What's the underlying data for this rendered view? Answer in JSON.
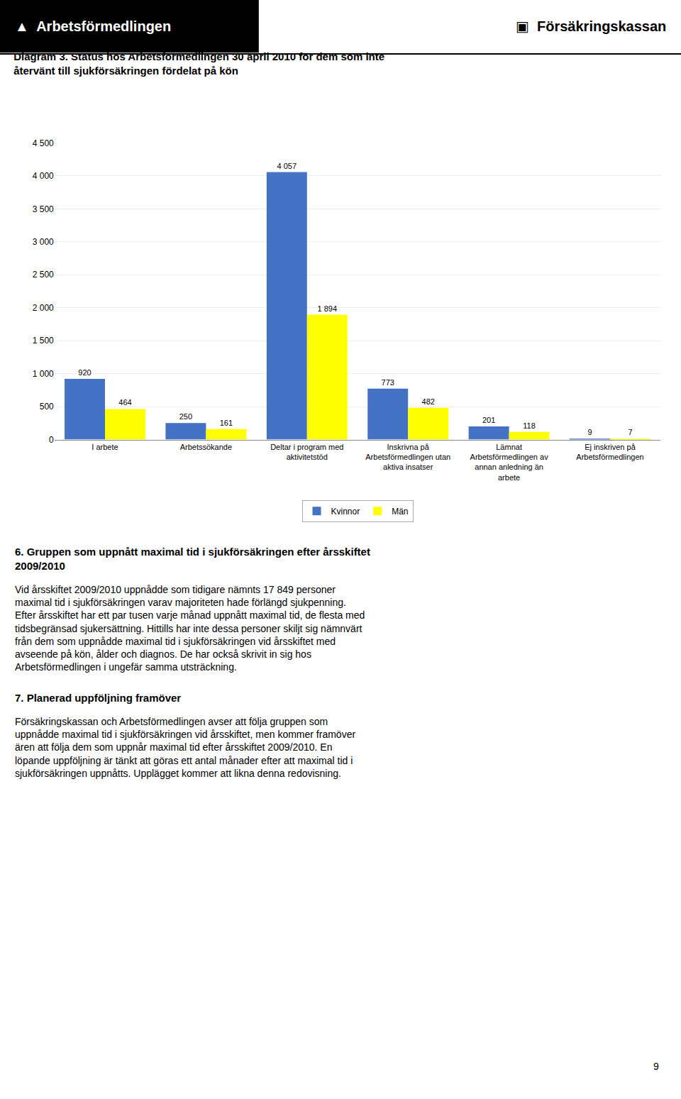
{
  "chart_data": {
    "type": "bar",
    "title": "Diagram 3. Status hos Arbetsförmedlingen 30 april 2010 för dem som inte\nåtervänt till sjukförsäkringen fördelat på kön",
    "categories": [
      "I arbete",
      "Arbetssökande",
      "Deltar i program med\naktivitetstöd",
      "Inskrivna på\nArbetsförmedlingen utan\naktiva insatser",
      "Lämnat\nArbetsförmedlingen av\nannan anledning än\narbete",
      "Ej inskriven på\nArbetsförmedlingen"
    ],
    "series": [
      {
        "name": "Kvinnor",
        "color": "#4472C4",
        "values": [
          920,
          250,
          4057,
          773,
          201,
          9
        ],
        "value_labels": [
          "920",
          "250",
          "4 057",
          "773",
          "201",
          "9"
        ]
      },
      {
        "name": "Män",
        "color": "#FFFF00",
        "values": [
          464,
          161,
          1894,
          482,
          118,
          7
        ],
        "value_labels": [
          "464",
          "161",
          "1 894",
          "482",
          "118",
          "7"
        ]
      }
    ],
    "ylim": [
      0,
      4500
    ],
    "yticks": [
      0,
      500,
      {
        "value": 1000,
        "label": "1 000"
      },
      {
        "value": 1500,
        "label": "1 500"
      },
      {
        "value": 2000,
        "label": "2 000"
      },
      {
        "value": 2500,
        "label": "2 500"
      },
      {
        "value": 3000,
        "label": "3 000"
      },
      {
        "value": 3500,
        "label": "3 500"
      },
      {
        "value": 4000,
        "label": "4 000"
      },
      {
        "value": 4500,
        "label": "4 500"
      }
    ],
    "grid": true,
    "legend": "bottom",
    "data_labels": true,
    "annotations": [
      "▲  Arbetsförmedlingen",
      "▣  Försäkringskassan",
      "6. Gruppen som uppnått maximal tid i sjukförsäkringen efter årsskiftet\n2009/2010",
      "Vid årsskiftet 2009/2010 uppnådde som tidigare nämnts 17 849 personer\nmaximal tid i sjukförsäkringen varav majoriteten hade förlängd sjukpenning.\nEfter årsskiftet har ett par tusen varje månad uppnått maximal tid, de flesta med\ntidsbegränsad sjukersättning. Hittills har inte dessa personer skiljt sig nämnvärt\nfrån dem som uppnådde maximal tid i sjukförsäkringen vid årsskiftet med\navseende på kön, ålder och diagnos. De har också skrivit in sig hos\nArbetsförmedlingen i ungefär samma utsträckning.",
      "7. Planerad uppföljning framöver",
      "Försäkringskassan och Arbetsförmedlingen avser att följa gruppen som\nuppnådde maximal tid i sjukförsäkringen vid årsskiftet, men kommer framöver\nären att följa dem som uppnår maximal tid efter årsskiftet 2009/2010. En\nlöpande uppföljning är tänkt att göras ett antal månader efter att maximal tid i\nsjukförsäkringen uppnåtts. Upplägget kommer att likna denna redovisning.",
      "9"
    ]
  }
}
